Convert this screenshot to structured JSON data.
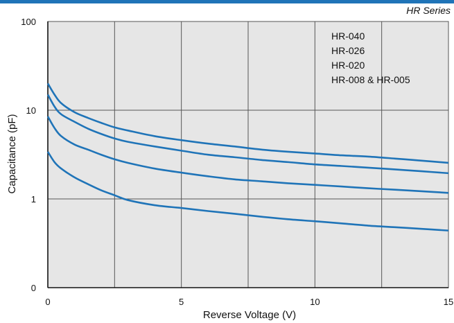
{
  "chart_data": {
    "type": "line",
    "series_title": "HR Series",
    "xlabel": "Reverse Voltage (V)",
    "ylabel": "Capacitance (pF)",
    "xlim": [
      0,
      15
    ],
    "x_ticks": [
      0,
      5,
      10,
      15
    ],
    "x_tick_labels": [
      "0",
      "5",
      "10",
      "15"
    ],
    "x_gridlines": [
      2.5,
      5,
      7.5,
      10,
      12.5
    ],
    "y_scale": "log",
    "y_tick_labels": [
      "100",
      "10",
      "1",
      "0"
    ],
    "grid": true,
    "legend_position": "top-right",
    "colors": {
      "line": "#1f74b8",
      "plot_bg": "#e6e6e6",
      "grid": "#555555",
      "top_bar": "#1f74b8"
    },
    "series": [
      {
        "name": "HR-040",
        "x": [
          0,
          0.25,
          0.5,
          1,
          1.5,
          2,
          2.5,
          3,
          4,
          5,
          6,
          7,
          8,
          9,
          10,
          11,
          12,
          13,
          14,
          15
        ],
        "y": [
          20,
          15,
          12,
          9.5,
          8.2,
          7.2,
          6.4,
          5.9,
          5.1,
          4.6,
          4.2,
          3.9,
          3.6,
          3.4,
          3.25,
          3.1,
          3.0,
          2.85,
          2.7,
          2.55
        ]
      },
      {
        "name": "HR-026",
        "x": [
          0,
          0.25,
          0.5,
          1,
          1.5,
          2,
          2.5,
          3,
          4,
          5,
          6,
          7,
          8,
          9,
          10,
          11,
          12,
          13,
          14,
          15
        ],
        "y": [
          15,
          11,
          9,
          7.4,
          6.2,
          5.4,
          4.8,
          4.4,
          3.9,
          3.5,
          3.15,
          2.95,
          2.75,
          2.6,
          2.45,
          2.35,
          2.25,
          2.15,
          2.05,
          1.95
        ]
      },
      {
        "name": "HR-020",
        "x": [
          0,
          0.25,
          0.5,
          1,
          1.5,
          2,
          2.5,
          3,
          4,
          5,
          6,
          7,
          8,
          9,
          10,
          11,
          12,
          13,
          14,
          15
        ],
        "y": [
          8.5,
          6.3,
          5.1,
          4.1,
          3.6,
          3.15,
          2.8,
          2.55,
          2.2,
          1.98,
          1.8,
          1.66,
          1.58,
          1.5,
          1.44,
          1.38,
          1.32,
          1.27,
          1.22,
          1.17
        ]
      },
      {
        "name": "HR-008 & HR-005",
        "x": [
          0,
          0.25,
          0.5,
          1,
          1.5,
          2,
          2.5,
          3,
          4,
          5,
          6,
          7,
          8,
          9,
          10,
          11,
          12,
          13,
          14,
          15
        ],
        "y": [
          3.4,
          2.6,
          2.2,
          1.75,
          1.47,
          1.25,
          1.1,
          0.97,
          0.85,
          0.79,
          0.73,
          0.68,
          0.63,
          0.59,
          0.56,
          0.53,
          0.5,
          0.48,
          0.46,
          0.44
        ]
      }
    ]
  }
}
